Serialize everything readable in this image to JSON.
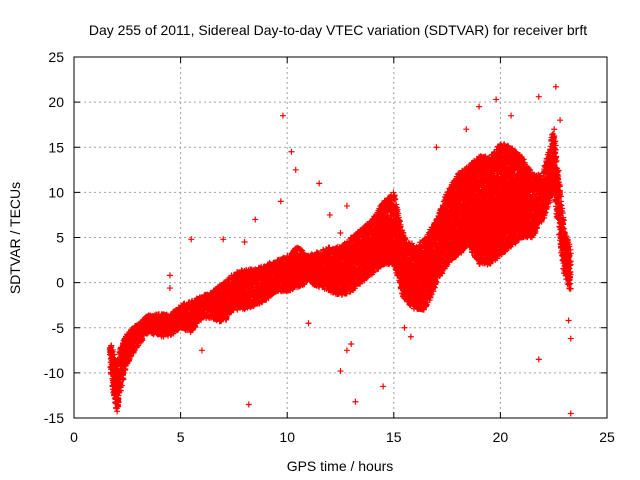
{
  "chart_data": {
    "type": "scatter",
    "title": "Day 255 of 2011, Sidereal Day-to-day VTEC variation (SDTVAR) for receiver brft",
    "xlabel": "GPS time / hours",
    "ylabel": "SDTVAR / TECUs",
    "xlim": [
      0,
      25
    ],
    "ylim": [
      -15,
      25
    ],
    "xticks": [
      "0",
      "5",
      "10",
      "15",
      "20",
      "25"
    ],
    "yticks": [
      "-15",
      "-10",
      "-5",
      "0",
      "5",
      "10",
      "15",
      "20",
      "25"
    ],
    "grid": true,
    "marker": "+",
    "marker_color": "#ff0000",
    "series": [
      {
        "name": "SDTVAR",
        "note": "Dense band of points approximated by per-hour ranges [x, ymin, ymax]",
        "bands": [
          [
            1.7,
            -10,
            -6.5
          ],
          [
            1.9,
            -13,
            -8
          ],
          [
            2.0,
            -14.5,
            -9
          ],
          [
            2.2,
            -12,
            -7
          ],
          [
            2.5,
            -9,
            -5.5
          ],
          [
            3.0,
            -7,
            -4.5
          ],
          [
            3.5,
            -5.5,
            -3.5
          ],
          [
            4.0,
            -6,
            -3.5
          ],
          [
            4.5,
            -6,
            -3.5
          ],
          [
            5.0,
            -5,
            -2.5
          ],
          [
            5.5,
            -5.5,
            -2
          ],
          [
            6.0,
            -4,
            -1.5
          ],
          [
            6.5,
            -4,
            -1
          ],
          [
            7.0,
            -4.5,
            0
          ],
          [
            7.5,
            -3,
            1
          ],
          [
            8.0,
            -3,
            1.5
          ],
          [
            8.5,
            -2.5,
            1.5
          ],
          [
            9.0,
            -2,
            2
          ],
          [
            9.5,
            -1,
            2.5
          ],
          [
            10.0,
            -1,
            3
          ],
          [
            10.5,
            -0.5,
            4
          ],
          [
            11.0,
            0,
            3
          ],
          [
            11.5,
            -0.5,
            3.5
          ],
          [
            12.0,
            -1,
            4
          ],
          [
            12.5,
            -1.5,
            4
          ],
          [
            13.0,
            -1,
            5
          ],
          [
            13.5,
            0,
            6
          ],
          [
            14.0,
            1,
            7
          ],
          [
            14.5,
            2,
            9
          ],
          [
            15.0,
            2,
            10
          ],
          [
            15.5,
            -2,
            5
          ],
          [
            16.0,
            -3,
            4
          ],
          [
            16.5,
            -3,
            5
          ],
          [
            17.0,
            0,
            7
          ],
          [
            17.5,
            2,
            10
          ],
          [
            18.0,
            3,
            12
          ],
          [
            18.5,
            4,
            13
          ],
          [
            19.0,
            2,
            14
          ],
          [
            19.5,
            2,
            14
          ],
          [
            20.0,
            3,
            15.5
          ],
          [
            20.5,
            4,
            15
          ],
          [
            21.0,
            5,
            14
          ],
          [
            21.5,
            5,
            12
          ],
          [
            22.0,
            7,
            12
          ],
          [
            22.5,
            10,
            17
          ],
          [
            23.0,
            1,
            6
          ],
          [
            23.3,
            -1,
            4
          ]
        ],
        "outliers": [
          [
            9.8,
            18.5
          ],
          [
            8.2,
            -13.5
          ],
          [
            13.2,
            -13.2
          ],
          [
            14.5,
            -11.5
          ],
          [
            12.5,
            -9.8
          ],
          [
            12.8,
            -7.5
          ],
          [
            13.0,
            -6.8
          ],
          [
            21.8,
            20.6
          ],
          [
            22.6,
            21.7
          ],
          [
            23.3,
            -14.5
          ],
          [
            23.3,
            -6.2
          ],
          [
            23.2,
            -4.2
          ],
          [
            21.8,
            -8.5
          ],
          [
            19.8,
            20.3
          ],
          [
            18.4,
            17.0
          ],
          [
            17.0,
            15.0
          ],
          [
            5.5,
            4.8
          ],
          [
            4.5,
            0.8
          ],
          [
            4.5,
            -0.6
          ],
          [
            7.0,
            4.8
          ],
          [
            8.0,
            4.5
          ],
          [
            10.2,
            14.5
          ],
          [
            10.4,
            12.5
          ],
          [
            11.5,
            11.0
          ],
          [
            12.0,
            7.5
          ],
          [
            12.8,
            8.5
          ],
          [
            9.7,
            9.0
          ],
          [
            8.5,
            7.0
          ],
          [
            6.0,
            -7.5
          ],
          [
            15.5,
            -5.0
          ],
          [
            15.8,
            -6.0
          ],
          [
            11.0,
            -4.5
          ],
          [
            12.5,
            5.5
          ],
          [
            19.0,
            19.5
          ],
          [
            20.5,
            18.5
          ],
          [
            22.8,
            18.0
          ]
        ]
      }
    ]
  }
}
